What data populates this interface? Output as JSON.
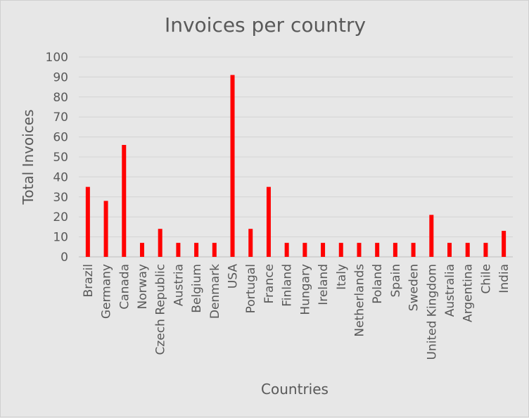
{
  "chart_data": {
    "type": "bar",
    "title": "Invoices per country",
    "xlabel": "Countries",
    "ylabel": "Total Invoices",
    "ylim": [
      0,
      100
    ],
    "yticks": [
      0,
      10,
      20,
      30,
      40,
      50,
      60,
      70,
      80,
      90,
      100
    ],
    "grid": true,
    "legend": "none",
    "bar_color": "#ff0000",
    "categories": [
      "Brazil",
      "Germany",
      "Canada",
      "Norway",
      "Czech Republic",
      "Austria",
      "Belgium",
      "Denmark",
      "USA",
      "Portugal",
      "France",
      "Finland",
      "Hungary",
      "Ireland",
      "Italy",
      "Netherlands",
      "Poland",
      "Spain",
      "Sweden",
      "United Kingdom",
      "Australia",
      "Argentina",
      "Chile",
      "India"
    ],
    "values": [
      35,
      28,
      56,
      7,
      14,
      7,
      7,
      7,
      91,
      14,
      35,
      7,
      7,
      7,
      7,
      7,
      7,
      7,
      7,
      21,
      7,
      7,
      7,
      13
    ]
  }
}
